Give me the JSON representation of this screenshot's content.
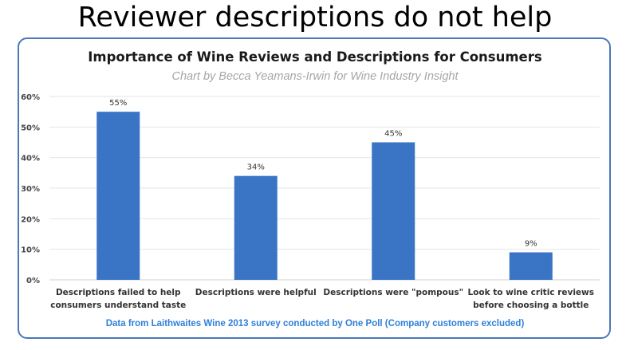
{
  "slide": {
    "title": "Reviewer descriptions do not help"
  },
  "chart_data": {
    "type": "bar",
    "title": "Importance of Wine Reviews and Descriptions  for Consumers",
    "subtitle": "Chart by Becca Yeamans-Irwin for Wine Industry Insight",
    "categories": [
      [
        "Descriptions failed to help",
        "consumers understand taste"
      ],
      [
        "Descriptions were helpful"
      ],
      [
        "Descriptions were \"pompous\""
      ],
      [
        "Look to wine critic reviews",
        "before choosing a bottle"
      ]
    ],
    "values": [
      55,
      34,
      45,
      9
    ],
    "data_labels": [
      "55%",
      "34%",
      "45%",
      "9%"
    ],
    "y_ticks": [
      0,
      10,
      20,
      30,
      40,
      50,
      60
    ],
    "y_tick_labels": [
      "0%",
      "10%",
      "20%",
      "30%",
      "40%",
      "50%",
      "60%"
    ],
    "ylim": [
      0,
      60
    ],
    "grid": true,
    "bar_color": "#3a74c4",
    "source": "Data from Laithwaites Wine 2013 survey conducted by One Poll (Company customers excluded)",
    "source_color": "#2f7fd8"
  }
}
